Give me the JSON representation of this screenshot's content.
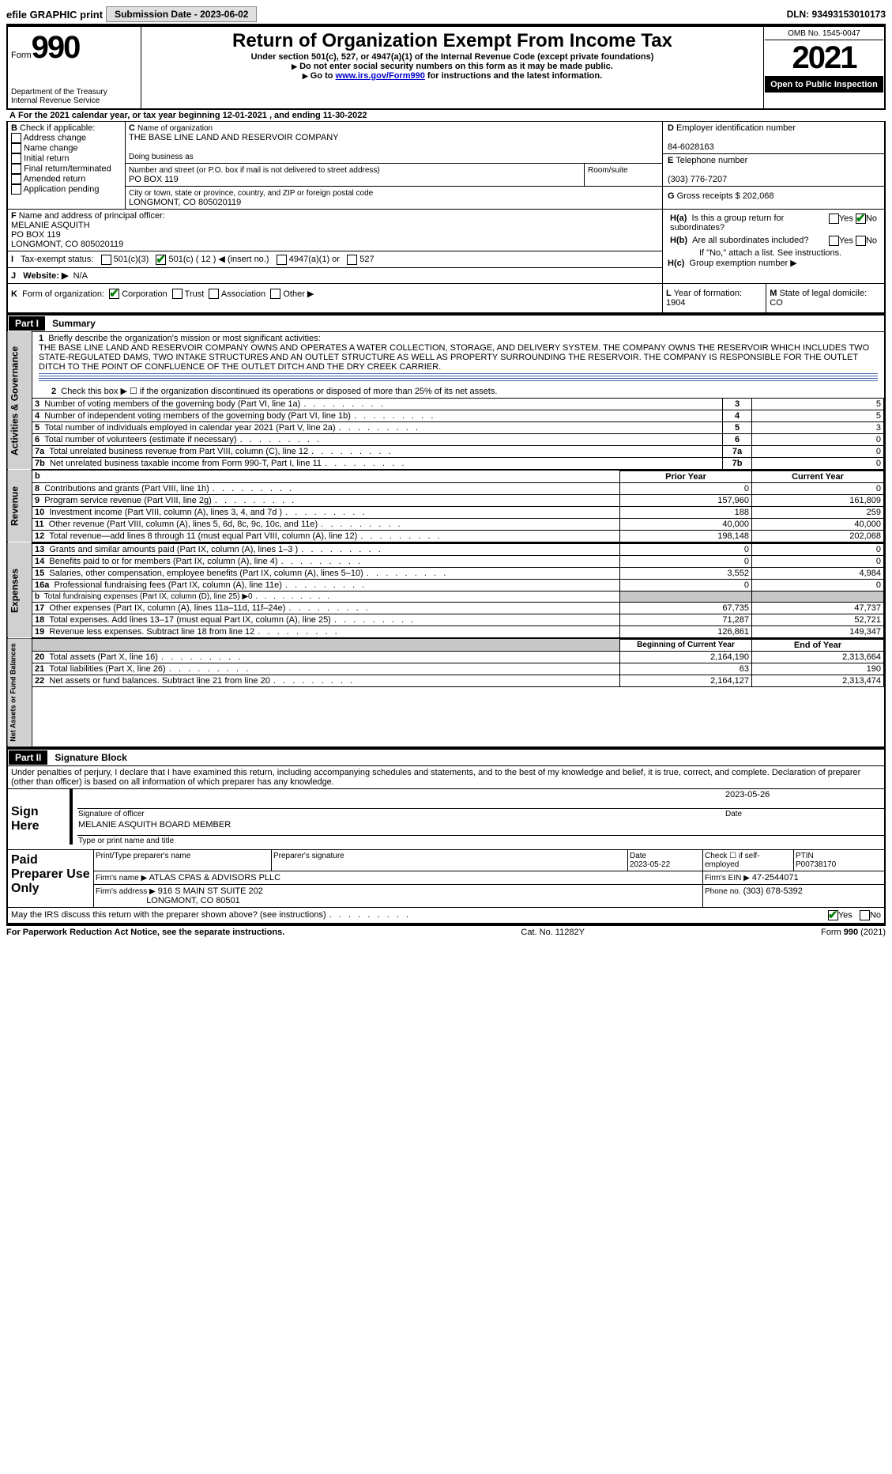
{
  "top": {
    "efile": "efile GRAPHIC print",
    "submission": "Submission Date - 2023-06-02",
    "dln": "DLN: 93493153010173"
  },
  "header": {
    "form_word": "Form",
    "form_no": "990",
    "title": "Return of Organization Exempt From Income Tax",
    "sub": "Under section 501(c), 527, or 4947(a)(1) of the Internal Revenue Code (except private foundations)",
    "note1": "Do not enter social security numbers on this form as it may be made public.",
    "note2_pre": "Go to ",
    "note2_link": "www.irs.gov/Form990",
    "note2_post": " for instructions and the latest information.",
    "dept": "Department of the Treasury",
    "irs": "Internal Revenue Service",
    "omb": "OMB No. 1545-0047",
    "year": "2021",
    "open": "Open to Public Inspection"
  },
  "A": {
    "prefix": "A",
    "text": "For the 2021 calendar year, or tax year beginning 12-01-2021    , and ending 11-30-2022"
  },
  "B": {
    "label": "B",
    "check": "Check if applicable:",
    "addr": "Address change",
    "name": "Name change",
    "init": "Initial return",
    "final": "Final return/terminated",
    "amend": "Amended return",
    "app": "Application pending"
  },
  "C": {
    "label": "C",
    "name_lbl": "Name of organization",
    "name": "THE BASE LINE LAND AND RESERVOIR COMPANY",
    "dba_lbl": "Doing business as",
    "street_lbl": "Number and street (or P.O. box if mail is not delivered to street address)",
    "room_lbl": "Room/suite",
    "street": "PO BOX 119",
    "city_lbl": "City or town, state or province, country, and ZIP or foreign postal code",
    "city": "LONGMONT, CO  805020119"
  },
  "D": {
    "label": "D",
    "lbl": "Employer identification number",
    "val": "84-6028163"
  },
  "E": {
    "label": "E",
    "lbl": "Telephone number",
    "val": "(303) 776-7207"
  },
  "F": {
    "label": "F",
    "lbl": "Name and address of principal officer:",
    "l1": "MELANIE ASQUITH",
    "l2": "PO BOX 119",
    "l3": "LONGMONT, CO  805020119"
  },
  "G": {
    "label": "G",
    "lbl": "Gross receipts $",
    "val": "202,068"
  },
  "H": {
    "a_lbl": "H(a)",
    "a_txt": "Is this a group return for subordinates?",
    "b_lbl": "H(b)",
    "b_txt": "Are all subordinates included?",
    "b_note": "If \"No,\" attach a list. See instructions.",
    "c_lbl": "H(c)",
    "c_txt": "Group exemption number ▶",
    "yes": "Yes",
    "no": "No"
  },
  "I": {
    "label": "I",
    "lbl": "Tax-exempt status:",
    "c3": "501(c)(3)",
    "c": "501(c) ( 12 ) ◀ (insert no.)",
    "a1": "4947(a)(1) or",
    "s527": "527"
  },
  "J": {
    "label": "J",
    "lbl": "Website: ▶",
    "val": "N/A"
  },
  "K": {
    "label": "K",
    "lbl": "Form of organization:",
    "corp": "Corporation",
    "trust": "Trust",
    "assoc": "Association",
    "other": "Other ▶"
  },
  "L": {
    "label": "L",
    "lbl": "Year of formation:",
    "val": "1904"
  },
  "M": {
    "label": "M",
    "lbl": "State of legal domicile:",
    "val": "CO"
  },
  "part1": {
    "hdr": "Part I",
    "title": "Summary",
    "l1_lbl": "1",
    "l1_txt": "Briefly describe the organization's mission or most significant activities:",
    "l1_desc": "THE BASE LINE LAND AND RESERVOIR COMPANY OWNS AND OPERATES A WATER COLLECTION, STORAGE, AND DELIVERY SYSTEM. THE COMPANY OWNS THE RESERVOIR WHICH INCLUDES TWO STATE-REGULATED DAMS, TWO INTAKE STRUCTURES AND AN OUTLET STRUCTURE AS WELL AS PROPERTY SURROUNDING THE RESERVOIR. THE COMPANY IS RESPONSIBLE FOR THE OUTLET DITCH TO THE POINT OF CONFLUENCE OF THE OUTLET DITCH AND THE DRY CREEK CARRIER.",
    "l2": "Check this box ▶ ☐ if the organization discontinued its operations or disposed of more than 25% of its net assets.",
    "rows_gov": [
      {
        "n": "3",
        "t": "Number of voting members of the governing body (Part VI, line 1a)",
        "box": "3",
        "v": "5"
      },
      {
        "n": "4",
        "t": "Number of independent voting members of the governing body (Part VI, line 1b)",
        "box": "4",
        "v": "5"
      },
      {
        "n": "5",
        "t": "Total number of individuals employed in calendar year 2021 (Part V, line 2a)",
        "box": "5",
        "v": "3"
      },
      {
        "n": "6",
        "t": "Total number of volunteers (estimate if necessary)",
        "box": "6",
        "v": "0"
      },
      {
        "n": "7a",
        "t": "Total unrelated business revenue from Part VIII, column (C), line 12",
        "box": "7a",
        "v": "0"
      },
      {
        "n": "7b",
        "t": "Net unrelated business taxable income from Form 990-T, Part I, line 11",
        "box": "7b",
        "v": "0"
      }
    ],
    "col_prior": "Prior Year",
    "col_curr": "Current Year",
    "rows_rev": [
      {
        "n": "8",
        "t": "Contributions and grants (Part VIII, line 1h)",
        "p": "0",
        "c": "0"
      },
      {
        "n": "9",
        "t": "Program service revenue (Part VIII, line 2g)",
        "p": "157,960",
        "c": "161,809"
      },
      {
        "n": "10",
        "t": "Investment income (Part VIII, column (A), lines 3, 4, and 7d )",
        "p": "188",
        "c": "259"
      },
      {
        "n": "11",
        "t": "Other revenue (Part VIII, column (A), lines 5, 6d, 8c, 9c, 10c, and 11e)",
        "p": "40,000",
        "c": "40,000"
      },
      {
        "n": "12",
        "t": "Total revenue—add lines 8 through 11 (must equal Part VIII, column (A), line 12)",
        "p": "198,148",
        "c": "202,068"
      }
    ],
    "rows_exp": [
      {
        "n": "13",
        "t": "Grants and similar amounts paid (Part IX, column (A), lines 1–3 )",
        "p": "0",
        "c": "0"
      },
      {
        "n": "14",
        "t": "Benefits paid to or for members (Part IX, column (A), line 4)",
        "p": "0",
        "c": "0"
      },
      {
        "n": "15",
        "t": "Salaries, other compensation, employee benefits (Part IX, column (A), lines 5–10)",
        "p": "3,552",
        "c": "4,984"
      },
      {
        "n": "16a",
        "t": "Professional fundraising fees (Part IX, column (A), line 11e)",
        "p": "0",
        "c": "0"
      },
      {
        "n": "b",
        "t": "Total fundraising expenses (Part IX, column (D), line 25) ▶0",
        "p": "",
        "c": "",
        "shade": true
      },
      {
        "n": "17",
        "t": "Other expenses (Part IX, column (A), lines 11a–11d, 11f–24e)",
        "p": "67,735",
        "c": "47,737"
      },
      {
        "n": "18",
        "t": "Total expenses. Add lines 13–17 (must equal Part IX, column (A), line 25)",
        "p": "71,287",
        "c": "52,721"
      },
      {
        "n": "19",
        "t": "Revenue less expenses. Subtract line 18 from line 12",
        "p": "126,861",
        "c": "149,347"
      }
    ],
    "col_beg": "Beginning of Current Year",
    "col_end": "End of Year",
    "rows_net": [
      {
        "n": "20",
        "t": "Total assets (Part X, line 16)",
        "p": "2,164,190",
        "c": "2,313,664"
      },
      {
        "n": "21",
        "t": "Total liabilities (Part X, line 26)",
        "p": "63",
        "c": "190"
      },
      {
        "n": "22",
        "t": "Net assets or fund balances. Subtract line 21 from line 20",
        "p": "2,164,127",
        "c": "2,313,474"
      }
    ],
    "tab_gov": "Activities & Governance",
    "tab_rev": "Revenue",
    "tab_exp": "Expenses",
    "tab_net": "Net Assets or Fund Balances"
  },
  "part2": {
    "hdr": "Part II",
    "title": "Signature Block",
    "decl": "Under penalties of perjury, I declare that I have examined this return, including accompanying schedules and statements, and to the best of my knowledge and belief, it is true, correct, and complete. Declaration of preparer (other than officer) is based on all information of which preparer has any knowledge.",
    "sign": "Sign Here",
    "sig_of": "Signature of officer",
    "date_lbl": "Date",
    "date": "2023-05-26",
    "name": "MELANIE ASQUITH  BOARD MEMBER",
    "name_lbl": "Type or print name and title",
    "paid": "Paid Preparer Use Only",
    "pp_name_lbl": "Print/Type preparer's name",
    "pp_sig_lbl": "Preparer's signature",
    "pp_date_lbl": "Date",
    "pp_date": "2023-05-22",
    "pp_self": "Check ☐ if self-employed",
    "ptin_lbl": "PTIN",
    "ptin": "P00738170",
    "firm_lbl": "Firm's name    ▶",
    "firm": "ATLAS CPAS & ADVISORS PLLC",
    "ein_lbl": "Firm's EIN ▶",
    "ein": "47-2544071",
    "addr_lbl": "Firm's address ▶",
    "addr1": "916 S MAIN ST SUITE 202",
    "addr2": "LONGMONT, CO  80501",
    "phone_lbl": "Phone no.",
    "phone": "(303) 678-5392",
    "discuss": "May the IRS discuss this return with the preparer shown above? (see instructions)",
    "yes": "Yes",
    "no": "No"
  },
  "footer": {
    "pra": "For Paperwork Reduction Act Notice, see the separate instructions.",
    "cat": "Cat. No. 11282Y",
    "form": "Form 990 (2021)"
  }
}
